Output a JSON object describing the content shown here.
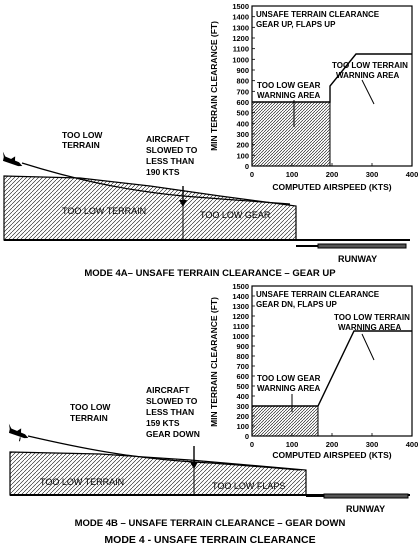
{
  "figure_title": "MODE 4 - UNSAFE TERRAIN CLEARANCE",
  "colors": {
    "hatch": "#000000",
    "background": "#ffffff"
  },
  "panel_a": {
    "caption": "MODE 4A– UNSAFE TERRAIN CLEARANCE – GEAR UP",
    "labels": {
      "too_low_terrain_1": "TOO LOW",
      "too_low_terrain_2": "TERRAIN",
      "aircraft_1": "AIRCRAFT",
      "aircraft_2": "SLOWED TO",
      "aircraft_3": "LESS THAN",
      "aircraft_4": "190 KTS",
      "region_terrain": "TOO LOW TERRAIN",
      "region_gear": "TOO LOW GEAR",
      "runway": "RUNWAY"
    },
    "chart": {
      "title_1": "UNSAFE TERRAIN CLEARANCE",
      "title_2": "GEAR UP, FLAPS UP",
      "ylabel": "MIN TERRAIN CLEARANCE (FT)",
      "xlabel": "COMPUTED AIRSPEED (KTS)",
      "yticks": [
        "0",
        "100",
        "200",
        "300",
        "400",
        "500",
        "600",
        "700",
        "800",
        "900",
        "1000",
        "1100",
        "1200",
        "1300",
        "1400",
        "1500"
      ],
      "xticks": [
        "0",
        "100",
        "200",
        "300",
        "400"
      ],
      "area_terrain_1": "TOO LOW TERRAIN",
      "area_terrain_2": "WARNING AREA",
      "area_gear_1": "TOO LOW GEAR",
      "area_gear_2": "WARNING AREA"
    }
  },
  "panel_b": {
    "caption": "MODE 4B – UNSAFE TERRAIN CLEARANCE – GEAR DOWN",
    "labels": {
      "too_low_terrain_1": "TOO LOW",
      "too_low_terrain_2": "TERRAIN",
      "aircraft_1": "AIRCRAFT",
      "aircraft_2": "SLOWED TO",
      "aircraft_3": "LESS THAN",
      "aircraft_4": "159 KTS",
      "aircraft_5": "GEAR DOWN",
      "region_terrain": "TOO LOW TERRAIN",
      "region_flaps": "TOO LOW FLAPS",
      "runway": "RUNWAY"
    },
    "chart": {
      "title_1": "UNSAFE TERRAIN CLEARANCE",
      "title_2": "GEAR DN, FLAPS UP",
      "ylabel": "MIN TERRAIN CLEARANCE (FT)",
      "xlabel": "COMPUTED AIRSPEED (KTS)",
      "yticks": [
        "0",
        "100",
        "200",
        "300",
        "400",
        "500",
        "600",
        "700",
        "800",
        "900",
        "1000",
        "1100",
        "1200",
        "1300",
        "1400",
        "1500"
      ],
      "xticks": [
        "0",
        "100",
        "200",
        "300",
        "400"
      ],
      "area_terrain_1": "TOO LOW TERRAIN",
      "area_terrain_2": "WARNING AREA",
      "area_gear_1": "TOO LOW GEAR",
      "area_gear_2": "WARNING AREA"
    }
  }
}
